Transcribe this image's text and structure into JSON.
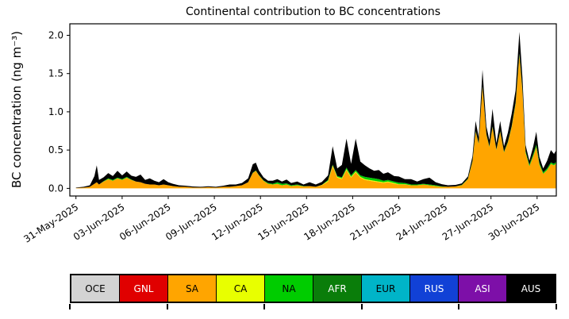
{
  "chart_data": {
    "type": "area",
    "stacked": true,
    "title": "Continental contribution to BC concentrations",
    "ylabel": "BC concentration (ng m⁻³)",
    "xlabel": "",
    "grid": false,
    "legend_position": "bottom-table",
    "xlim": [
      -0.4,
      31.25
    ],
    "ylim": [
      -0.1,
      2.15
    ],
    "x_unit": "days since 31-May-2025",
    "y_ticks": [
      {
        "value": 0.0,
        "label": "0.0"
      },
      {
        "value": 0.5,
        "label": "0.5"
      },
      {
        "value": 1.0,
        "label": "1.0"
      },
      {
        "value": 1.5,
        "label": "1.5"
      },
      {
        "value": 2.0,
        "label": "2.0"
      }
    ],
    "x_ticks": [
      {
        "day": 0,
        "label": "31-May-2025"
      },
      {
        "day": 3,
        "label": "03-Jun-2025"
      },
      {
        "day": 6,
        "label": "06-Jun-2025"
      },
      {
        "day": 9,
        "label": "09-Jun-2025"
      },
      {
        "day": 12,
        "label": "12-Jun-2025"
      },
      {
        "day": 15,
        "label": "15-Jun-2025"
      },
      {
        "day": 18,
        "label": "18-Jun-2025"
      },
      {
        "day": 21,
        "label": "21-Jun-2025"
      },
      {
        "day": 24,
        "label": "24-Jun-2025"
      },
      {
        "day": 27,
        "label": "27-Jun-2025"
      },
      {
        "day": 30,
        "label": "30-Jun-2025"
      }
    ],
    "x": [
      0,
      0.5,
      0.9,
      1.2,
      1.35,
      1.5,
      1.8,
      2.1,
      2.4,
      2.7,
      3.0,
      3.3,
      3.6,
      3.9,
      4.2,
      4.5,
      4.8,
      5.1,
      5.4,
      5.7,
      6.0,
      6.3,
      6.7,
      7.1,
      7.6,
      8.1,
      8.6,
      9.1,
      9.6,
      10.0,
      10.4,
      10.8,
      11.2,
      11.5,
      11.7,
      11.9,
      12.2,
      12.5,
      12.8,
      13.1,
      13.4,
      13.7,
      14.0,
      14.4,
      14.8,
      15.2,
      15.6,
      16.0,
      16.4,
      16.7,
      17.0,
      17.3,
      17.6,
      17.9,
      18.2,
      18.5,
      18.8,
      19.1,
      19.4,
      19.7,
      20.0,
      20.3,
      20.7,
      21.0,
      21.4,
      21.8,
      22.2,
      22.6,
      23.0,
      23.4,
      23.8,
      24.2,
      24.7,
      25.1,
      25.5,
      25.8,
      26.0,
      26.2,
      26.45,
      26.7,
      26.9,
      27.1,
      27.35,
      27.6,
      27.85,
      28.1,
      28.35,
      28.6,
      28.85,
      29.05,
      29.25,
      29.5,
      29.75,
      29.95,
      30.15,
      30.4,
      30.65,
      30.9,
      31.1,
      31.25
    ],
    "series": [
      {
        "name": "OCE",
        "color": "#d3d3d3",
        "values": []
      },
      {
        "name": "GNL",
        "color": "#e00000",
        "values": []
      },
      {
        "name": "SA",
        "color": "#ffa500",
        "values": [
          0.005,
          0.01,
          0.02,
          0.06,
          0.08,
          0.05,
          0.09,
          0.12,
          0.1,
          0.13,
          0.11,
          0.14,
          0.11,
          0.09,
          0.08,
          0.06,
          0.05,
          0.05,
          0.04,
          0.05,
          0.04,
          0.03,
          0.02,
          0.02,
          0.012,
          0.01,
          0.015,
          0.01,
          0.02,
          0.02,
          0.03,
          0.04,
          0.08,
          0.2,
          0.23,
          0.17,
          0.1,
          0.06,
          0.05,
          0.06,
          0.04,
          0.05,
          0.03,
          0.04,
          0.025,
          0.03,
          0.02,
          0.04,
          0.09,
          0.29,
          0.14,
          0.12,
          0.24,
          0.14,
          0.21,
          0.14,
          0.11,
          0.1,
          0.09,
          0.08,
          0.07,
          0.08,
          0.06,
          0.05,
          0.05,
          0.04,
          0.04,
          0.05,
          0.04,
          0.03,
          0.02,
          0.02,
          0.025,
          0.04,
          0.12,
          0.35,
          0.74,
          0.58,
          1.33,
          0.7,
          0.54,
          0.8,
          0.5,
          0.74,
          0.47,
          0.6,
          0.8,
          1.1,
          1.74,
          1.25,
          0.46,
          0.29,
          0.42,
          0.54,
          0.31,
          0.19,
          0.24,
          0.32,
          0.3,
          0.33
        ]
      },
      {
        "name": "CA",
        "color": "#e8ff00",
        "values": [
          0,
          0,
          0,
          0,
          0,
          0,
          0,
          0,
          0,
          0,
          0,
          0,
          0,
          0,
          0,
          0,
          0,
          0,
          0,
          0,
          0,
          0,
          0,
          0,
          0,
          0,
          0,
          0,
          0,
          0,
          0,
          0,
          0,
          0,
          0,
          0,
          0,
          0,
          0,
          0,
          0,
          0,
          0,
          0,
          0,
          0,
          0,
          0.005,
          0.01,
          0.01,
          0.01,
          0.01,
          0.01,
          0.01,
          0.01,
          0.01,
          0.01,
          0.01,
          0.01,
          0.01,
          0.01,
          0.01,
          0.01,
          0.005,
          0.005,
          0,
          0,
          0,
          0,
          0,
          0,
          0,
          0,
          0,
          0,
          0,
          0,
          0,
          0,
          0,
          0,
          0,
          0,
          0,
          0,
          0,
          0.005,
          0.005,
          0.005,
          0.005,
          0.005,
          0,
          0,
          0,
          0,
          0,
          0,
          0,
          0,
          0
        ]
      },
      {
        "name": "NA",
        "color": "#00cc00",
        "values": [
          0,
          0,
          0,
          0,
          0,
          0,
          0.005,
          0.01,
          0.01,
          0.01,
          0.01,
          0.01,
          0.005,
          0,
          0,
          0,
          0,
          0,
          0,
          0,
          0,
          0,
          0,
          0,
          0,
          0,
          0,
          0,
          0,
          0,
          0,
          0,
          0,
          0.005,
          0.005,
          0.005,
          0.005,
          0.01,
          0.01,
          0.02,
          0.02,
          0.015,
          0.01,
          0.01,
          0.005,
          0,
          0,
          0,
          0.01,
          0.01,
          0.01,
          0.015,
          0.02,
          0.02,
          0.02,
          0.02,
          0.03,
          0.03,
          0.03,
          0.03,
          0.02,
          0.02,
          0.02,
          0.02,
          0.015,
          0.01,
          0.01,
          0.01,
          0.01,
          0.01,
          0.005,
          0,
          0,
          0.005,
          0.005,
          0.01,
          0.01,
          0.01,
          0.01,
          0.01,
          0.01,
          0.01,
          0.01,
          0.01,
          0.01,
          0.01,
          0.01,
          0.015,
          0.02,
          0.02,
          0.02,
          0.02,
          0.025,
          0.03,
          0.02,
          0.02,
          0.02,
          0.02,
          0.02,
          0.02
        ]
      },
      {
        "name": "AFR",
        "color": "#0a7d0a",
        "values": []
      },
      {
        "name": "EUR",
        "color": "#00b4c8",
        "values": []
      },
      {
        "name": "RUS",
        "color": "#1141d6",
        "values": []
      },
      {
        "name": "ASI",
        "color": "#7d0fa8",
        "values": []
      },
      {
        "name": "AUS",
        "color": "#000000",
        "values": [
          0.005,
          0.01,
          0.02,
          0.1,
          0.22,
          0.06,
          0.05,
          0.07,
          0.05,
          0.09,
          0.05,
          0.07,
          0.05,
          0.06,
          0.1,
          0.05,
          0.08,
          0.05,
          0.04,
          0.07,
          0.04,
          0.03,
          0.02,
          0.015,
          0.012,
          0.01,
          0.012,
          0.01,
          0.015,
          0.03,
          0.02,
          0.03,
          0.05,
          0.11,
          0.1,
          0.06,
          0.04,
          0.03,
          0.04,
          0.04,
          0.03,
          0.05,
          0.03,
          0.04,
          0.02,
          0.05,
          0.03,
          0.04,
          0.06,
          0.24,
          0.1,
          0.16,
          0.38,
          0.15,
          0.41,
          0.18,
          0.15,
          0.12,
          0.1,
          0.12,
          0.09,
          0.1,
          0.07,
          0.08,
          0.05,
          0.07,
          0.04,
          0.06,
          0.09,
          0.04,
          0.03,
          0.02,
          0.02,
          0.02,
          0.03,
          0.06,
          0.13,
          0.08,
          0.21,
          0.1,
          0.08,
          0.23,
          0.08,
          0.13,
          0.07,
          0.12,
          0.16,
          0.16,
          0.28,
          0.16,
          0.08,
          0.05,
          0.1,
          0.17,
          0.08,
          0.05,
          0.1,
          0.16,
          0.13,
          0.15
        ]
      }
    ],
    "note": "Stacked bottom-to-top in listed order; series with empty values arrays show no visible contribution over the plotted period."
  },
  "legend": {
    "items": [
      {
        "label": "OCE",
        "color": "#d3d3d3",
        "text_color": "#000000"
      },
      {
        "label": "GNL",
        "color": "#e00000",
        "text_color": "#ffffff"
      },
      {
        "label": "SA",
        "color": "#ffa500",
        "text_color": "#000000"
      },
      {
        "label": "CA",
        "color": "#e8ff00",
        "text_color": "#000000"
      },
      {
        "label": "NA",
        "color": "#00cc00",
        "text_color": "#000000"
      },
      {
        "label": "AFR",
        "color": "#0a7d0a",
        "text_color": "#ffffff"
      },
      {
        "label": "EUR",
        "color": "#00b4c8",
        "text_color": "#000000"
      },
      {
        "label": "RUS",
        "color": "#1141d6",
        "text_color": "#ffffff"
      },
      {
        "label": "ASI",
        "color": "#7d0fa8",
        "text_color": "#ffffff"
      },
      {
        "label": "AUS",
        "color": "#000000",
        "text_color": "#ffffff"
      }
    ]
  }
}
